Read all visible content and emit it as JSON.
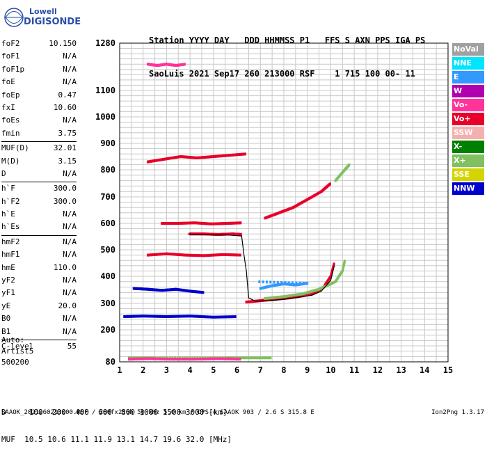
{
  "logo": {
    "line1": "Lowell",
    "line2": "DIGISONDE"
  },
  "header": {
    "line1": "Station YYYY DAY   DDD HHMMSS P1   FFS S AXN PPS IGA PS",
    "line2": "SaoLuis 2021 Sep17 260 213000 RSF    1 715 100 00- 11"
  },
  "params": [
    {
      "label": "foF2",
      "value": "10.150"
    },
    {
      "label": "foF1",
      "value": "N/A"
    },
    {
      "label": "foF1p",
      "value": "N/A"
    },
    {
      "label": "foE",
      "value": "N/A"
    },
    {
      "label": "foEp",
      "value": "0.47"
    },
    {
      "label": "fxI",
      "value": "10.60"
    },
    {
      "label": "foEs",
      "value": "N/A"
    },
    {
      "label": "fmin",
      "value": "3.75"
    },
    {
      "label": "MUF(D)",
      "value": "32.01",
      "sep": true
    },
    {
      "label": "M(D)",
      "value": "3.15"
    },
    {
      "label": "D",
      "value": "N/A"
    },
    {
      "label": "h`F",
      "value": "300.0",
      "sep": true
    },
    {
      "label": "h`F2",
      "value": "300.0"
    },
    {
      "label": "h`E",
      "value": "N/A"
    },
    {
      "label": "h`Es",
      "value": "N/A"
    },
    {
      "label": "hmF2",
      "value": "N/A",
      "sep": true
    },
    {
      "label": "hmF1",
      "value": "N/A"
    },
    {
      "label": "hmE",
      "value": "110.0"
    },
    {
      "label": "yF2",
      "value": "N/A"
    },
    {
      "label": "yF1",
      "value": "N/A"
    },
    {
      "label": "yE",
      "value": "20.0"
    },
    {
      "label": "B0",
      "value": "N/A"
    },
    {
      "label": "B1",
      "value": "N/A"
    },
    {
      "label": "C-level",
      "value": "55",
      "sep": true
    }
  ],
  "auto": {
    "line1": "Auto:",
    "line2": "Artist5",
    "line3": "500200"
  },
  "legend": [
    {
      "label": "NoVal",
      "color": "#a0a0a0"
    },
    {
      "label": "NNE",
      "color": "#00e5ff"
    },
    {
      "label": "E",
      "color": "#3399ff"
    },
    {
      "label": "W",
      "color": "#b000b0"
    },
    {
      "label": "Vo-",
      "color": "#ff3399"
    },
    {
      "label": "Vo+",
      "color": "#e8002a"
    },
    {
      "label": "SSW",
      "color": "#f4b0b0"
    },
    {
      "label": "X-",
      "color": "#008000"
    },
    {
      "label": "X+",
      "color": "#80c060"
    },
    {
      "label": "SSE",
      "color": "#d4d400"
    },
    {
      "label": "NNW",
      "color": "#0000cc"
    }
  ],
  "muf": {
    "line1": "D     100  200  400  600  800 1000 1500 3000 [km]",
    "line2": "MUF  10.5 10.6 11.1 11.9 13.1 14.7 19.6 32.0 [MHz]"
  },
  "footer": "SAAOK_2021260213000.RSF / 280fx256h 50 kHz 5.0 km / DPS-4 SAAOK 903 / 2.6 S 315.8 E",
  "version": "Ion2Png 1.3.17",
  "chart_data": {
    "type": "scatter",
    "x_ticks": [
      1,
      2,
      3,
      4,
      5,
      6,
      7,
      8,
      9,
      10,
      11,
      12,
      13,
      14,
      15
    ],
    "y_ticks": [
      80,
      200,
      300,
      400,
      500,
      600,
      700,
      800,
      900,
      1000,
      1100,
      1280
    ],
    "xlim": [
      1,
      15
    ],
    "ylim": [
      80,
      1280
    ],
    "grid": true,
    "axis_scale": "ionogram height scale (non-linear)",
    "series": [
      {
        "name": "Vo+",
        "color": "#e8002a",
        "points": [
          [
            6.4,
            305
          ],
          [
            7,
            310
          ],
          [
            7.6,
            315
          ],
          [
            8.2,
            320
          ],
          [
            8.8,
            328
          ],
          [
            9.3,
            338
          ],
          [
            9.7,
            360
          ],
          [
            10,
            400
          ],
          [
            10.15,
            450
          ]
        ]
      },
      {
        "name": "X+",
        "color": "#80c060",
        "points": [
          [
            7.2,
            318
          ],
          [
            8,
            325
          ],
          [
            8.8,
            335
          ],
          [
            9.5,
            352
          ],
          [
            10.2,
            380
          ],
          [
            10.5,
            420
          ],
          [
            10.6,
            460
          ]
        ]
      },
      {
        "name": "E",
        "color": "#3399ff",
        "points": [
          [
            7,
            355
          ],
          [
            7.5,
            365
          ],
          [
            8,
            372
          ],
          [
            8.5,
            368
          ],
          [
            9,
            374
          ],
          [
            6.8,
            380
          ]
        ]
      },
      {
        "name": "Vo+",
        "color": "#e8002a",
        "points": [
          [
            4,
            560
          ],
          [
            4.6,
            560
          ],
          [
            5.2,
            558
          ],
          [
            5.8,
            560
          ],
          [
            6.2,
            558
          ]
        ]
      },
      {
        "name": "Vo+",
        "color": "#e8002a",
        "points": [
          [
            7.2,
            620
          ],
          [
            7.8,
            640
          ],
          [
            8.4,
            660
          ],
          [
            9,
            690
          ],
          [
            9.6,
            720
          ],
          [
            10,
            750
          ]
        ]
      },
      {
        "name": "X+",
        "color": "#80c060",
        "points": [
          [
            10.2,
            760
          ],
          [
            10.6,
            800
          ],
          [
            10.8,
            820
          ]
        ]
      },
      {
        "name": "NNW",
        "color": "#0000cc",
        "points": [
          [
            1.6,
            355
          ],
          [
            2.2,
            352
          ],
          [
            2.8,
            348
          ],
          [
            3.4,
            352
          ],
          [
            4,
            345
          ],
          [
            4.6,
            340
          ]
        ]
      },
      {
        "name": "NNW",
        "color": "#0000cc",
        "points": [
          [
            1.2,
            250
          ],
          [
            2,
            252
          ],
          [
            3,
            250
          ],
          [
            4,
            252
          ],
          [
            5,
            248
          ],
          [
            6,
            250
          ]
        ]
      },
      {
        "name": "X+",
        "color": "#80c060",
        "points": [
          [
            1.4,
            95
          ],
          [
            2.5,
            95
          ],
          [
            4,
            95
          ],
          [
            5.5,
            95
          ],
          [
            6.5,
            95
          ],
          [
            7.5,
            95
          ]
        ]
      },
      {
        "name": "Vo-",
        "color": "#ff3399",
        "points": [
          [
            1.4,
            90
          ],
          [
            2.2,
            92
          ],
          [
            3.2,
            90
          ],
          [
            4.2,
            90
          ],
          [
            5.2,
            92
          ],
          [
            6.2,
            90
          ]
        ]
      },
      {
        "name": "Vo+",
        "color": "#e8002a",
        "points": [
          [
            2.2,
            480
          ],
          [
            3,
            485
          ],
          [
            3.8,
            480
          ],
          [
            4.6,
            478
          ],
          [
            5.4,
            482
          ],
          [
            6.2,
            480
          ]
        ]
      },
      {
        "name": "Vo+",
        "color": "#e8002a",
        "points": [
          [
            2.8,
            600
          ],
          [
            3.5,
            600
          ],
          [
            4.2,
            602
          ],
          [
            4.9,
            598
          ],
          [
            5.6,
            600
          ],
          [
            6.2,
            602
          ]
        ]
      },
      {
        "name": "Vo+",
        "color": "#e8002a",
        "points": [
          [
            2.2,
            830
          ],
          [
            2.9,
            840
          ],
          [
            3.6,
            850
          ],
          [
            4.3,
            845
          ],
          [
            5,
            850
          ],
          [
            5.7,
            855
          ],
          [
            6.4,
            860
          ]
        ]
      },
      {
        "name": "Vo-",
        "color": "#ff3399",
        "points": [
          [
            2.2,
            1200
          ],
          [
            2.6,
            1195
          ],
          [
            3,
            1200
          ],
          [
            3.4,
            1195
          ],
          [
            3.8,
            1200
          ]
        ]
      }
    ],
    "trace": {
      "name": "autoscaled trace",
      "color": "#000000",
      "points": [
        [
          3.9,
          560
        ],
        [
          4.5,
          558
        ],
        [
          5,
          556
        ],
        [
          5.6,
          556
        ],
        [
          6.2,
          552
        ],
        [
          6.3,
          480
        ],
        [
          6.4,
          420
        ],
        [
          6.5,
          320
        ],
        [
          6.8,
          308
        ],
        [
          7.4,
          310
        ],
        [
          8,
          315
        ],
        [
          8.6,
          322
        ],
        [
          9.2,
          330
        ],
        [
          9.6,
          345
        ],
        [
          10,
          385
        ],
        [
          10.15,
          440
        ]
      ]
    }
  }
}
